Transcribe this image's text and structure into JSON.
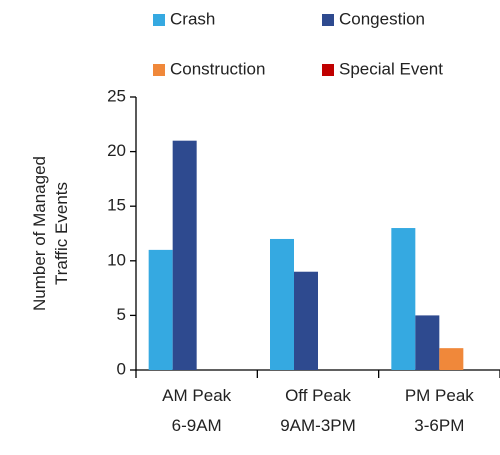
{
  "chart_data": {
    "type": "bar",
    "categories": [
      "AM Peak\n6-9AM",
      "Off Peak\n9AM-3PM",
      "PM Peak\n3-6PM"
    ],
    "series": [
      {
        "name": "Crash",
        "color": "#35a9e1",
        "values": [
          11,
          12,
          13
        ]
      },
      {
        "name": "Congestion",
        "color": "#2e4a8f",
        "values": [
          21,
          9,
          5
        ]
      },
      {
        "name": "Construction",
        "color": "#f0883a",
        "values": [
          0,
          0,
          2
        ]
      },
      {
        "name": "Special Event",
        "color": "#c00000",
        "values": [
          0,
          0,
          0
        ]
      }
    ],
    "y_label": "Number of Managed\nTraffic Events",
    "ylim": [
      0,
      25
    ],
    "yticks": [
      0,
      5,
      10,
      15,
      20,
      25
    ],
    "grid": false
  }
}
